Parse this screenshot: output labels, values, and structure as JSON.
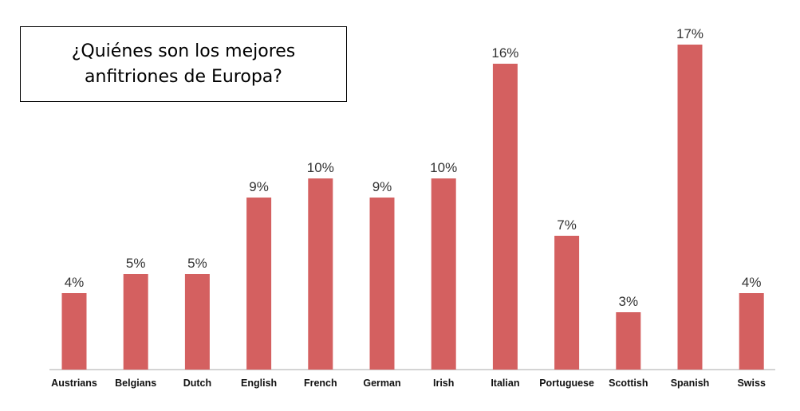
{
  "title": {
    "line1": "¿Quiénes son los mejores",
    "line2": "anfitriones de Europa?"
  },
  "colors": {
    "bar": "#d46060",
    "axis": "#bbbbbb"
  },
  "chart_data": {
    "type": "bar",
    "categories": [
      "Austrians",
      "Belgians",
      "Dutch",
      "English",
      "French",
      "German",
      "Irish",
      "Italian",
      "Portuguese",
      "Scottish",
      "Spanish",
      "Swiss"
    ],
    "values": [
      4,
      5,
      5,
      9,
      10,
      9,
      10,
      16,
      7,
      3,
      17,
      4
    ],
    "value_labels": [
      "4%",
      "5%",
      "5%",
      "9%",
      "10%",
      "9%",
      "10%",
      "16%",
      "7%",
      "3%",
      "17%",
      "4%"
    ],
    "ylim": [
      0,
      17
    ],
    "grid": false,
    "legend": "none"
  }
}
